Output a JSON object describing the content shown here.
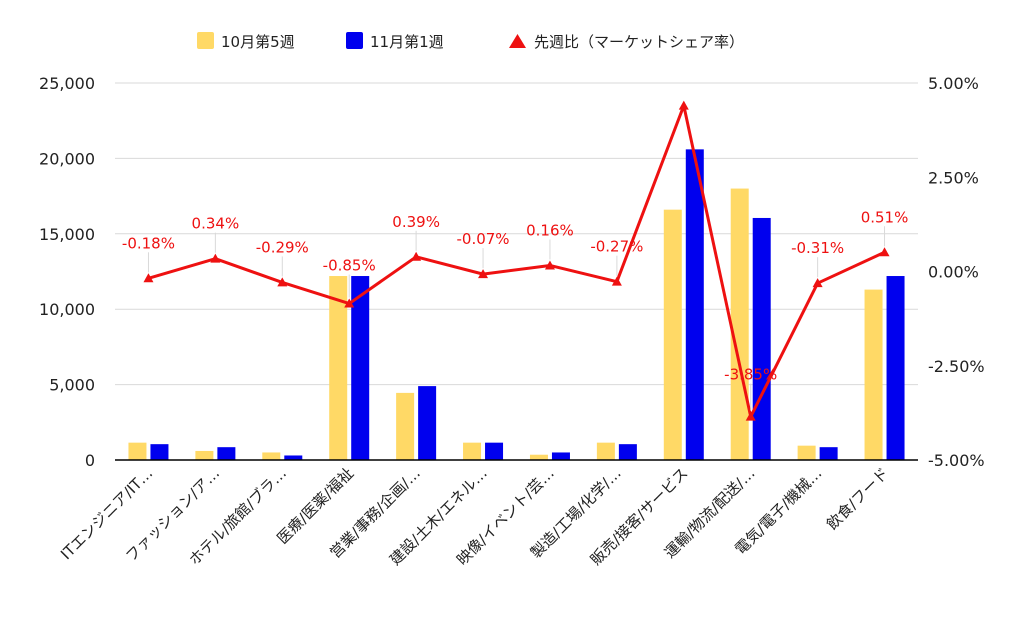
{
  "legend": {
    "oct": "10月第5週",
    "nov": "11月第1週",
    "ratio": "先週比（マーケットシェア率）"
  },
  "colors": {
    "oct": "#FFD966",
    "nov": "#0000EE",
    "ratio": "#EE1111",
    "grid": "#D9D9D9",
    "axis": "#000000"
  },
  "chart_data": {
    "type": "bar",
    "categories": [
      "ITエンジニア/IT…",
      "ファッション/ア…",
      "ホテル/旅館/ブラ…",
      "医療/医薬/福祉",
      "営業/事務/企画/…",
      "建設/土木/エネル…",
      "映像/イベント/芸…",
      "製造/工場/化学/…",
      "販売/接客/サービス",
      "運輸/物流/配送/…",
      "電気/電子/機械…",
      "飲食/フード"
    ],
    "series": [
      {
        "name": "10月第5週",
        "axis": "left",
        "type": "bar",
        "values": [
          1150,
          600,
          500,
          12200,
          4450,
          1150,
          350,
          1150,
          16600,
          18000,
          950,
          11300
        ]
      },
      {
        "name": "11月第1週",
        "axis": "left",
        "type": "bar",
        "values": [
          1050,
          850,
          300,
          12200,
          4900,
          1150,
          500,
          1050,
          20600,
          16050,
          850,
          12200
        ]
      },
      {
        "name": "先週比（マーケットシェア率）",
        "axis": "right",
        "type": "line",
        "marker": "triangle",
        "values": [
          -0.18,
          0.34,
          -0.29,
          -0.85,
          0.39,
          -0.07,
          0.16,
          -0.27,
          4.4,
          -3.85,
          -0.31,
          0.51
        ],
        "labels": [
          "-0.18%",
          "0.34%",
          "-0.29%",
          "-0.85%",
          "0.39%",
          "-0.07%",
          "0.16%",
          "-0.27%",
          "",
          "-3.85%",
          "-0.31%",
          "0.51%"
        ]
      }
    ],
    "ylim": [
      0,
      25000
    ],
    "yticks": [
      0,
      5000,
      10000,
      15000,
      20000,
      25000
    ],
    "ytick_labels": [
      "0",
      "5,000",
      "10,000",
      "15,000",
      "20,000",
      "25,000"
    ],
    "y2lim": [
      -5,
      5
    ],
    "y2ticks": [
      -5,
      -2.5,
      0,
      2.5,
      5
    ],
    "y2tick_labels": [
      "-5.00%",
      "-2.50%",
      "0.00%",
      "2.50%",
      "5.00%"
    ],
    "grid": true,
    "legend_position": "top-center"
  }
}
